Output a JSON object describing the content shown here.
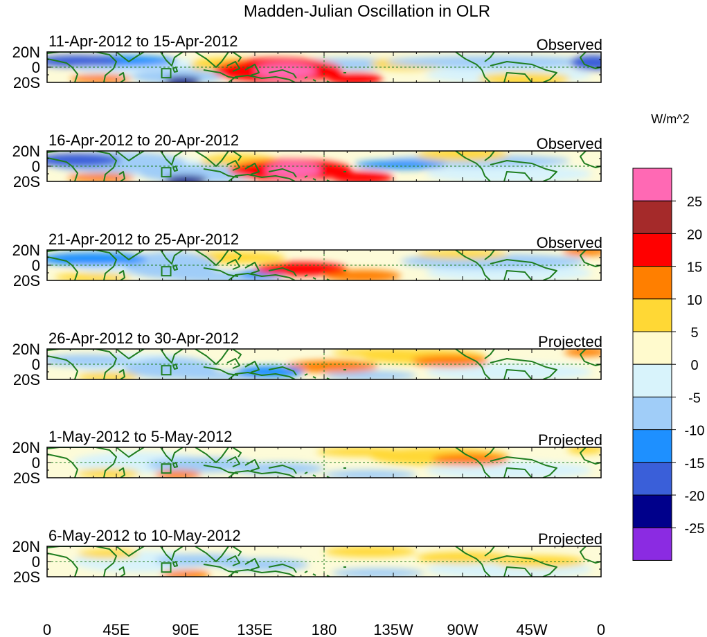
{
  "chart_data": {
    "type": "heatmap",
    "title": "Madden-Julian Oscillation in OLR",
    "units_label": "W/m^2",
    "y_tick_labels": [
      "20N",
      "0",
      "20S"
    ],
    "x_tick_labels": [
      "0",
      "45E",
      "90E",
      "135E",
      "180",
      "135W",
      "90W",
      "45W",
      "0"
    ],
    "x_range_deg": [
      0,
      360
    ],
    "y_range_deg": [
      -20,
      20
    ],
    "x_tick_values_deg": [
      0,
      45,
      90,
      135,
      180,
      225,
      270,
      315,
      360
    ],
    "colorbar": {
      "levels": [
        -25,
        -20,
        -15,
        -10,
        -5,
        0,
        5,
        10,
        15,
        20,
        25
      ],
      "level_labels": [
        "25",
        "20",
        "15",
        "10",
        "5",
        "0",
        "-5",
        "-10",
        "-15",
        "-20",
        "-25"
      ],
      "colors": [
        "#8b2be2",
        "#00008b",
        "#3a5fd9",
        "#1e90ff",
        "#a0cdf8",
        "#d8f3fb",
        "#fffacd",
        "#ffd835",
        "#ff7f00",
        "#ff0000",
        "#a52a2a",
        "#ff69b4"
      ]
    },
    "panels": [
      {
        "period": "11-Apr-2012 to 15-Apr-2012",
        "status": "Observed",
        "anomalies": [
          {
            "lon": 155,
            "lat": -5,
            "dlon": 20,
            "dlat": 10,
            "value": 28
          },
          {
            "lon": 150,
            "lat": -4,
            "dlon": 42,
            "dlat": 16,
            "value": 18
          },
          {
            "lon": 115,
            "lat": 3,
            "dlon": 22,
            "dlat": 10,
            "value": 8
          },
          {
            "lon": 200,
            "lat": -15,
            "dlon": 18,
            "dlat": 8,
            "value": 16
          },
          {
            "lon": 20,
            "lat": 8,
            "dlon": 28,
            "dlat": 8,
            "value": -20
          },
          {
            "lon": 45,
            "lat": 8,
            "dlon": 40,
            "dlat": 8,
            "value": -12
          },
          {
            "lon": 88,
            "lat": -18,
            "dlon": 12,
            "dlat": 6,
            "value": -22
          },
          {
            "lon": 85,
            "lat": -12,
            "dlon": 30,
            "dlat": 10,
            "value": -9
          },
          {
            "lon": 290,
            "lat": 7,
            "dlon": 70,
            "dlat": 8,
            "value": -10
          },
          {
            "lon": 355,
            "lat": 6,
            "dlon": 15,
            "dlat": 10,
            "value": -18
          },
          {
            "lon": 195,
            "lat": 4,
            "dlon": 40,
            "dlat": 8,
            "value": -8
          },
          {
            "lon": 235,
            "lat": 4,
            "dlon": 25,
            "dlat": 8,
            "value": 8
          },
          {
            "lon": 35,
            "lat": -15,
            "dlon": 20,
            "dlat": 6,
            "value": 10
          },
          {
            "lon": 310,
            "lat": -15,
            "dlon": 30,
            "dlat": 8,
            "value": 7
          }
        ]
      },
      {
        "period": "16-Apr-2012 to 20-Apr-2012",
        "status": "Observed",
        "anomalies": [
          {
            "lon": 160,
            "lat": -5,
            "dlon": 18,
            "dlat": 10,
            "value": 28
          },
          {
            "lon": 158,
            "lat": -5,
            "dlon": 40,
            "dlat": 14,
            "value": 17
          },
          {
            "lon": 205,
            "lat": -15,
            "dlon": 20,
            "dlat": 8,
            "value": 16
          },
          {
            "lon": 20,
            "lat": 8,
            "dlon": 28,
            "dlat": 9,
            "value": -20
          },
          {
            "lon": 45,
            "lat": 5,
            "dlon": 45,
            "dlat": 14,
            "value": -10
          },
          {
            "lon": 90,
            "lat": -18,
            "dlon": 14,
            "dlat": 6,
            "value": -22
          },
          {
            "lon": 100,
            "lat": -10,
            "dlon": 40,
            "dlat": 12,
            "value": -9
          },
          {
            "lon": 280,
            "lat": 7,
            "dlon": 60,
            "dlat": 8,
            "value": -8
          },
          {
            "lon": 230,
            "lat": 2,
            "dlon": 30,
            "dlat": 6,
            "value": -12
          },
          {
            "lon": 35,
            "lat": -15,
            "dlon": 22,
            "dlat": 6,
            "value": 12
          },
          {
            "lon": 270,
            "lat": 15,
            "dlon": 30,
            "dlat": 8,
            "value": 8
          },
          {
            "lon": 125,
            "lat": 6,
            "dlon": 25,
            "dlat": 10,
            "value": 6
          }
        ]
      },
      {
        "period": "21-Apr-2012 to 25-Apr-2012",
        "status": "Observed",
        "anomalies": [
          {
            "lon": 165,
            "lat": -5,
            "dlon": 30,
            "dlat": 9,
            "value": 17
          },
          {
            "lon": 205,
            "lat": -14,
            "dlon": 25,
            "dlat": 8,
            "value": 10
          },
          {
            "lon": 30,
            "lat": 8,
            "dlon": 35,
            "dlat": 9,
            "value": -12
          },
          {
            "lon": 80,
            "lat": 0,
            "dlon": 30,
            "dlat": 18,
            "value": -10
          },
          {
            "lon": 115,
            "lat": -15,
            "dlon": 40,
            "dlat": 8,
            "value": -9
          },
          {
            "lon": 140,
            "lat": -12,
            "dlon": 15,
            "dlat": 6,
            "value": -14
          },
          {
            "lon": 290,
            "lat": 5,
            "dlon": 60,
            "dlat": 10,
            "value": -6
          },
          {
            "lon": 270,
            "lat": 14,
            "dlon": 30,
            "dlat": 6,
            "value": 8
          },
          {
            "lon": 350,
            "lat": 18,
            "dlon": 15,
            "dlat": 6,
            "value": 12
          },
          {
            "lon": 30,
            "lat": -16,
            "dlon": 25,
            "dlat": 6,
            "value": 8
          },
          {
            "lon": 120,
            "lat": 10,
            "dlon": 35,
            "dlat": 8,
            "value": 6
          }
        ]
      },
      {
        "period": "26-Apr-2012 to 30-Apr-2012",
        "status": "Projected",
        "anomalies": [
          {
            "lon": 185,
            "lat": -3,
            "dlon": 30,
            "dlat": 8,
            "value": 12
          },
          {
            "lon": 262,
            "lat": 4,
            "dlon": 25,
            "dlat": 8,
            "value": 12
          },
          {
            "lon": 245,
            "lat": 10,
            "dlon": 40,
            "dlat": 10,
            "value": 7
          },
          {
            "lon": 145,
            "lat": -10,
            "dlon": 22,
            "dlat": 8,
            "value": -14
          },
          {
            "lon": 80,
            "lat": -5,
            "dlon": 30,
            "dlat": 14,
            "value": -10
          },
          {
            "lon": 110,
            "lat": -15,
            "dlon": 35,
            "dlat": 6,
            "value": -8
          },
          {
            "lon": 25,
            "lat": 5,
            "dlon": 30,
            "dlat": 8,
            "value": -7
          },
          {
            "lon": 210,
            "lat": -15,
            "dlon": 30,
            "dlat": 6,
            "value": -8
          },
          {
            "lon": 40,
            "lat": -16,
            "dlon": 20,
            "dlat": 6,
            "value": 9
          },
          {
            "lon": 350,
            "lat": 16,
            "dlon": 14,
            "dlat": 6,
            "value": 12
          },
          {
            "lon": 220,
            "lat": 15,
            "dlon": 35,
            "dlat": 6,
            "value": 7
          }
        ]
      },
      {
        "period": "1-May-2012 to 5-May-2012",
        "status": "Projected",
        "anomalies": [
          {
            "lon": 85,
            "lat": -16,
            "dlon": 15,
            "dlat": 6,
            "value": 12
          },
          {
            "lon": 275,
            "lat": 4,
            "dlon": 25,
            "dlat": 8,
            "value": 12
          },
          {
            "lon": 255,
            "lat": 8,
            "dlon": 45,
            "dlat": 12,
            "value": 7
          },
          {
            "lon": 150,
            "lat": -8,
            "dlon": 30,
            "dlat": 8,
            "value": -10
          },
          {
            "lon": 100,
            "lat": -3,
            "dlon": 35,
            "dlat": 10,
            "value": -7
          },
          {
            "lon": 210,
            "lat": -16,
            "dlon": 30,
            "dlat": 6,
            "value": -7
          },
          {
            "lon": 40,
            "lat": -14,
            "dlon": 20,
            "dlat": 6,
            "value": 7
          },
          {
            "lon": 205,
            "lat": 14,
            "dlon": 30,
            "dlat": 6,
            "value": 6
          },
          {
            "lon": 350,
            "lat": 17,
            "dlon": 12,
            "dlat": 6,
            "value": 7
          }
        ]
      },
      {
        "period": "6-May-2012 to 10-May-2012",
        "status": "Projected",
        "anomalies": [
          {
            "lon": 90,
            "lat": -17,
            "dlon": 16,
            "dlat": 6,
            "value": 12
          },
          {
            "lon": 270,
            "lat": 5,
            "dlon": 30,
            "dlat": 8,
            "value": 7
          },
          {
            "lon": 210,
            "lat": 13,
            "dlon": 30,
            "dlat": 7,
            "value": 7
          },
          {
            "lon": 140,
            "lat": -4,
            "dlon": 30,
            "dlat": 8,
            "value": -8
          },
          {
            "lon": 100,
            "lat": 2,
            "dlon": 30,
            "dlat": 8,
            "value": -6
          },
          {
            "lon": 215,
            "lat": -15,
            "dlon": 30,
            "dlat": 6,
            "value": -7
          },
          {
            "lon": 40,
            "lat": 10,
            "dlon": 20,
            "dlat": 6,
            "value": 7
          },
          {
            "lon": 320,
            "lat": 0,
            "dlon": 30,
            "dlat": 8,
            "value": 7
          }
        ]
      }
    ]
  }
}
